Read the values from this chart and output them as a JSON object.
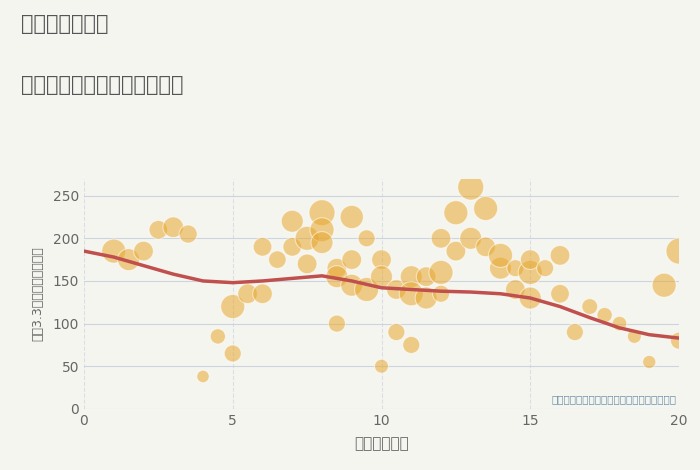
{
  "title_line1": "東京都金町駅の",
  "title_line2": "駅距離別中古マンション価格",
  "xlabel": "駅距離（分）",
  "ylabel": "坪（3.3㎡）単価（万円）",
  "annotation": "円の大きさは、取引のあった物件面積を示す",
  "bg_color": "#f5f5f0",
  "plot_bg_color": "#f5f5f0",
  "scatter_color": "#e8a830",
  "scatter_alpha": 0.55,
  "scatter_edge_color": "#ffffff",
  "line_color": "#c0504d",
  "line_width": 2.5,
  "grid_color": "#ccd5de",
  "xlim": [
    0,
    20
  ],
  "ylim": [
    0,
    270
  ],
  "xticks": [
    0,
    5,
    10,
    15,
    20
  ],
  "yticks": [
    0,
    50,
    100,
    150,
    200,
    250
  ],
  "scatter_x": [
    1,
    1.5,
    2,
    2.5,
    3,
    3.5,
    4,
    4.5,
    5,
    5,
    5.5,
    6,
    6,
    6.5,
    7,
    7,
    7.5,
    7.5,
    8,
    8,
    8,
    8.5,
    8.5,
    8.5,
    9,
    9,
    9,
    9.5,
    9.5,
    10,
    10,
    10,
    10.5,
    10.5,
    11,
    11,
    11,
    11.5,
    11.5,
    12,
    12,
    12,
    12.5,
    12.5,
    13,
    13,
    13.5,
    13.5,
    14,
    14,
    14.5,
    14.5,
    15,
    15,
    15,
    15.5,
    16,
    16,
    16.5,
    17,
    17.5,
    18,
    18.5,
    19,
    19.5,
    20,
    20
  ],
  "scatter_y": [
    185,
    175,
    185,
    210,
    213,
    205,
    38,
    85,
    120,
    65,
    135,
    190,
    135,
    175,
    220,
    190,
    200,
    170,
    230,
    210,
    195,
    165,
    155,
    100,
    225,
    175,
    145,
    200,
    140,
    175,
    155,
    50,
    140,
    90,
    155,
    135,
    75,
    155,
    130,
    160,
    200,
    135,
    230,
    185,
    260,
    200,
    235,
    190,
    165,
    180,
    140,
    165,
    160,
    175,
    130,
    165,
    180,
    135,
    90,
    120,
    110,
    100,
    85,
    55,
    145,
    185,
    80
  ],
  "scatter_size": [
    300,
    250,
    200,
    180,
    220,
    170,
    80,
    120,
    300,
    150,
    200,
    180,
    200,
    160,
    250,
    180,
    300,
    200,
    350,
    300,
    250,
    200,
    250,
    150,
    280,
    200,
    250,
    150,
    300,
    200,
    250,
    100,
    200,
    150,
    250,
    300,
    150,
    200,
    250,
    300,
    200,
    150,
    300,
    200,
    350,
    250,
    300,
    200,
    250,
    300,
    200,
    150,
    300,
    200,
    250,
    150,
    200,
    180,
    150,
    130,
    120,
    110,
    100,
    90,
    300,
    350,
    150
  ],
  "trend_x": [
    0,
    1,
    2,
    3,
    4,
    5,
    6,
    7,
    8,
    9,
    10,
    11,
    12,
    13,
    14,
    15,
    16,
    17,
    18,
    19,
    20
  ],
  "trend_y": [
    185,
    178,
    168,
    158,
    150,
    148,
    150,
    153,
    156,
    150,
    142,
    140,
    138,
    137,
    135,
    130,
    120,
    107,
    95,
    87,
    83
  ],
  "title_color": "#555555",
  "tick_color": "#666666",
  "annotation_color": "#6a8fa8"
}
